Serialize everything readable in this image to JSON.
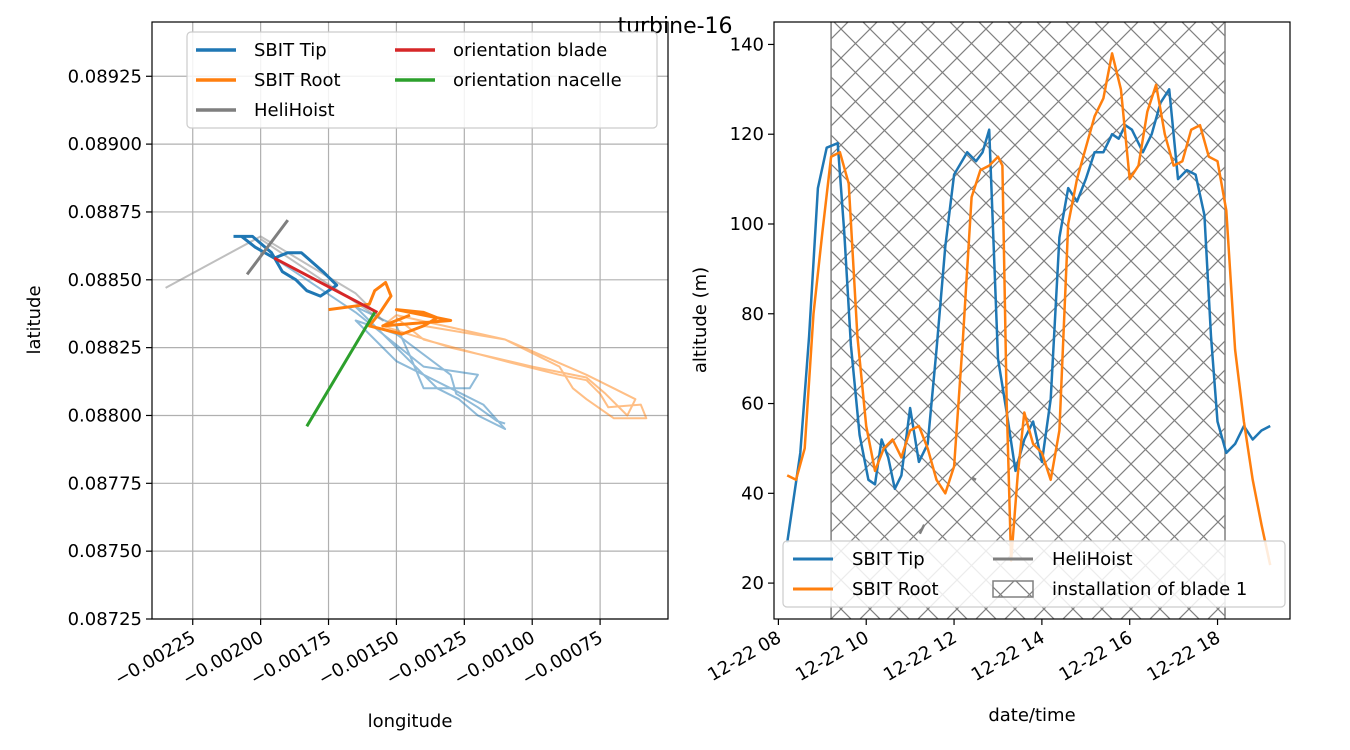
{
  "figure_title": "turbine-16",
  "colors": {
    "tip": "#1f77b4",
    "root": "#ff7f0e",
    "helihoist": "#7f7f7f",
    "blade": "#d62728",
    "nacelle": "#2ca02c"
  },
  "chart_data": [
    {
      "type": "line",
      "xlabel": "longitude",
      "ylabel": "latitude",
      "xlim": [
        -0.0024,
        -0.0005
      ],
      "ylim": [
        0.08725,
        0.08945
      ],
      "grid": true,
      "legend": "top",
      "x_ticks": [
        -0.00225,
        -0.002,
        -0.00175,
        -0.0015,
        -0.00125,
        -0.001,
        -0.00075
      ],
      "x_tick_labels": [
        "−0.00225",
        "−0.00200",
        "−0.00175",
        "−0.00150",
        "−0.00125",
        "−0.00100",
        "−0.00075"
      ],
      "y_ticks": [
        0.08725,
        0.0875,
        0.08775,
        0.088,
        0.08825,
        0.0885,
        0.08875,
        0.089,
        0.08925
      ],
      "y_tick_labels": [
        "0.08725",
        "0.08750",
        "0.08775",
        "0.08800",
        "0.08825",
        "0.08850",
        "0.08875",
        "0.08900",
        "0.08925"
      ],
      "legend_entries": [
        "SBIT Tip",
        "orientation blade",
        "SBIT Root",
        "orientation nacelle",
        "HeliHoist"
      ],
      "series": [
        {
          "name": "SBIT Tip",
          "role": "faint",
          "color_key": "tip",
          "x": [
            -0.00195,
            -0.0018,
            -0.00165,
            -0.0015,
            -0.0014,
            -0.0012,
            -0.00123,
            -0.0014,
            -0.00145,
            -0.0015,
            -0.00165,
            -0.0015,
            -0.00135,
            -0.00127,
            -0.0012,
            -0.0011,
            -0.00118,
            -0.0013,
            -0.0015,
            -0.00165,
            -0.0015,
            -0.0013,
            -0.00128,
            -0.0012,
            -0.00113,
            -0.0011
          ],
          "y": [
            0.08858,
            0.08848,
            0.08838,
            0.08826,
            0.08818,
            0.08815,
            0.0881,
            0.0881,
            0.08822,
            0.08833,
            0.0884,
            0.08825,
            0.0881,
            0.08806,
            0.088,
            0.08795,
            0.08804,
            0.0881,
            0.0882,
            0.08835,
            0.0883,
            0.08815,
            0.08808,
            0.08803,
            0.08798,
            0.08797
          ]
        },
        {
          "name": "SBIT Root",
          "role": "faint",
          "color_key": "root",
          "x": [
            -0.0015,
            -0.0014,
            -0.0011,
            -0.0009,
            -0.0008,
            -0.00075,
            -0.00072,
            -0.0006,
            -0.00058,
            -0.0007,
            -0.0008,
            -0.00085,
            -0.0009,
            -0.0011,
            -0.0015,
            -0.00155,
            -0.0013,
            -0.001,
            -0.0008,
            -0.00073,
            -0.00065,
            -0.00062,
            -0.0007,
            -0.0008,
            -0.0011,
            -0.0014
          ],
          "y": [
            0.08836,
            0.08828,
            0.0882,
            0.08815,
            0.08813,
            0.08808,
            0.08803,
            0.08804,
            0.08799,
            0.08799,
            0.08806,
            0.0881,
            0.08818,
            0.08828,
            0.08837,
            0.08833,
            0.08825,
            0.08818,
            0.08814,
            0.08808,
            0.088,
            0.08806,
            0.0881,
            0.08815,
            0.08828,
            0.08833
          ]
        },
        {
          "name": "HeliHoist",
          "role": "faint",
          "color_key": "helihoist",
          "x": [
            -0.00235,
            -0.002,
            -0.0019,
            -0.00165,
            -0.00155,
            -0.002
          ],
          "y": [
            0.08847,
            0.08866,
            0.0886,
            0.08845,
            0.08835,
            0.08865
          ]
        },
        {
          "name": "SBIT Tip",
          "role": "main",
          "color_key": "tip",
          "x": [
            -0.0021,
            -0.00203,
            -0.00196,
            -0.00192,
            -0.00187,
            -0.00183,
            -0.00178,
            -0.00172,
            -0.00177,
            -0.00185,
            -0.0019,
            -0.00195,
            -0.00202,
            -0.00207
          ],
          "y": [
            0.08866,
            0.08866,
            0.0886,
            0.08853,
            0.0885,
            0.08846,
            0.08844,
            0.08848,
            0.08853,
            0.0886,
            0.0886,
            0.08858,
            0.08862,
            0.08866
          ]
        },
        {
          "name": "SBIT Root",
          "role": "main",
          "color_key": "root",
          "x": [
            -0.00175,
            -0.0016,
            -0.00158,
            -0.00154,
            -0.00152,
            -0.00156,
            -0.0016,
            -0.00148,
            -0.0014,
            -0.00135,
            -0.0014,
            -0.0015,
            -0.0013,
            -0.00155,
            -0.00145
          ],
          "y": [
            0.08839,
            0.08841,
            0.08846,
            0.08849,
            0.08844,
            0.08838,
            0.08833,
            0.0883,
            0.08833,
            0.08836,
            0.08838,
            0.08839,
            0.08835,
            0.08833,
            0.08837
          ]
        },
        {
          "name": "HeliHoist",
          "role": "main",
          "color_key": "helihoist",
          "x": [
            -0.00205,
            -0.0019
          ],
          "y": [
            0.08852,
            0.08872
          ]
        },
        {
          "name": "orientation blade",
          "role": "main",
          "color_key": "blade",
          "x": [
            -0.00195,
            -0.00157
          ],
          "y": [
            0.08858,
            0.08838
          ]
        },
        {
          "name": "orientation nacelle",
          "role": "main",
          "color_key": "nacelle",
          "x": [
            -0.00183,
            -0.00158
          ],
          "y": [
            0.08796,
            0.08838
          ]
        }
      ]
    },
    {
      "type": "line",
      "xlabel": "date/time",
      "ylabel": "altitude (m)",
      "xlim": [
        7.9,
        19.65
      ],
      "ylim": [
        12,
        145
      ],
      "grid": false,
      "legend": "bottom",
      "x_ticks": [
        8,
        10,
        12,
        14,
        16,
        18
      ],
      "x_tick_labels": [
        "12-22 08",
        "12-22 10",
        "12-22 12",
        "12-22 14",
        "12-22 16",
        "12-22 18"
      ],
      "y_ticks": [
        20,
        40,
        60,
        80,
        100,
        120,
        140
      ],
      "y_tick_labels": [
        "20",
        "40",
        "60",
        "80",
        "100",
        "120",
        "140"
      ],
      "legend_entries": [
        "SBIT Tip",
        "HeliHoist",
        "SBIT Root",
        "installation of blade 1"
      ],
      "span": {
        "name": "installation of blade 1",
        "x": [
          9.2,
          18.17
        ]
      },
      "series": [
        {
          "name": "SBIT Tip",
          "color_key": "tip",
          "x": [
            8.2,
            8.5,
            8.7,
            8.9,
            9.1,
            9.35,
            9.5,
            9.65,
            9.85,
            10.05,
            10.2,
            10.35,
            10.5,
            10.65,
            10.8,
            11,
            11.2,
            11.4,
            11.6,
            11.8,
            12.0,
            12.3,
            12.5,
            12.65,
            12.8,
            13.0,
            13.2,
            13.4,
            13.6,
            13.8,
            14.0,
            14.2,
            14.4,
            14.6,
            14.8,
            15.0,
            15.2,
            15.4,
            15.6,
            15.75,
            15.9,
            16.05,
            16.3,
            16.5,
            16.7,
            16.9,
            17.1,
            17.3,
            17.5,
            17.7,
            17.85,
            18.0,
            18.2,
            18.4,
            18.6,
            18.8,
            19.0,
            19.2
          ],
          "y": [
            29,
            49,
            75,
            108,
            117,
            118,
            98,
            73,
            53,
            43,
            42,
            52,
            48,
            41,
            44,
            59,
            47,
            51,
            72,
            95,
            111,
            116,
            114,
            116,
            121,
            70,
            58,
            45,
            52,
            56,
            47,
            61,
            97,
            108,
            105,
            110,
            116,
            116,
            120,
            119,
            122,
            121,
            116,
            120,
            127,
            130,
            110,
            112,
            111,
            102,
            75,
            56,
            49,
            51,
            55,
            52,
            54,
            55
          ]
        },
        {
          "name": "SBIT Root",
          "color_key": "root",
          "x": [
            8.2,
            8.4,
            8.6,
            8.8,
            9.0,
            9.2,
            9.4,
            9.6,
            9.8,
            10.0,
            10.2,
            10.4,
            10.6,
            10.8,
            11.0,
            11.2,
            11.4,
            11.6,
            11.8,
            12.0,
            12.2,
            12.4,
            12.6,
            12.8,
            13.0,
            13.1,
            13.2,
            13.3,
            13.45,
            13.6,
            13.8,
            14.0,
            14.2,
            14.4,
            14.6,
            14.8,
            15.0,
            15.2,
            15.4,
            15.6,
            15.8,
            16.0,
            16.2,
            16.4,
            16.6,
            16.8,
            17.0,
            17.2,
            17.4,
            17.6,
            17.8,
            18.0,
            18.2,
            18.4,
            18.6,
            18.8,
            19.0,
            19.2
          ],
          "y": [
            44,
            43,
            50,
            80,
            98,
            115,
            116,
            109,
            75,
            55,
            45,
            50,
            52,
            48,
            54,
            55,
            50,
            43,
            40,
            46,
            74,
            106,
            112,
            113,
            115,
            113,
            60,
            25,
            44,
            58,
            51,
            49,
            43,
            54,
            100,
            110,
            117,
            124,
            128,
            138,
            130,
            110,
            113,
            125,
            131,
            120,
            113,
            114,
            121,
            122,
            115,
            114,
            103,
            72,
            56,
            43,
            33,
            24
          ]
        },
        {
          "name": "HeliHoist",
          "color_key": "helihoist",
          "x": [
            11.22,
            11.32
          ],
          "y": [
            31,
            33
          ]
        },
        {
          "name": "HeliHoist",
          "color_key": "helihoist",
          "x": [
            12.4,
            12.5
          ],
          "y": [
            43.5,
            43
          ]
        }
      ]
    }
  ]
}
